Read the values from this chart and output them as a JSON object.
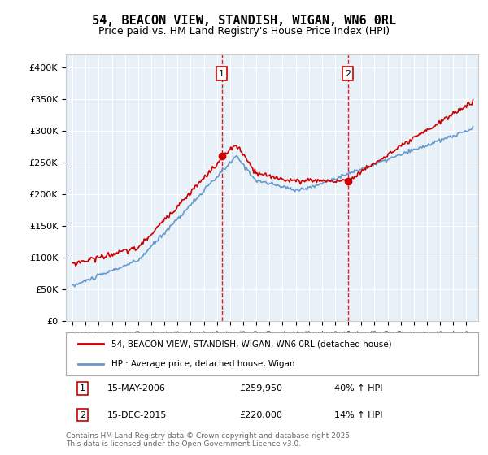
{
  "title": "54, BEACON VIEW, STANDISH, WIGAN, WN6 0RL",
  "subtitle": "Price paid vs. HM Land Registry's House Price Index (HPI)",
  "legend_label_red": "54, BEACON VIEW, STANDISH, WIGAN, WN6 0RL (detached house)",
  "legend_label_blue": "HPI: Average price, detached house, Wigan",
  "annotation1_date": "15-MAY-2006",
  "annotation1_price": "£259,950",
  "annotation1_hpi": "40% ↑ HPI",
  "annotation2_date": "15-DEC-2015",
  "annotation2_price": "£220,000",
  "annotation2_hpi": "14% ↑ HPI",
  "footer": "Contains HM Land Registry data © Crown copyright and database right 2025.\nThis data is licensed under the Open Government Licence v3.0.",
  "ylim": [
    0,
    420000
  ],
  "plot_bg_color": "#e8f0f8",
  "red_color": "#cc0000",
  "blue_color": "#6699cc",
  "sale1_year": 2006.37,
  "sale1_price": 259950,
  "sale2_year": 2015.96,
  "sale2_price": 220000
}
